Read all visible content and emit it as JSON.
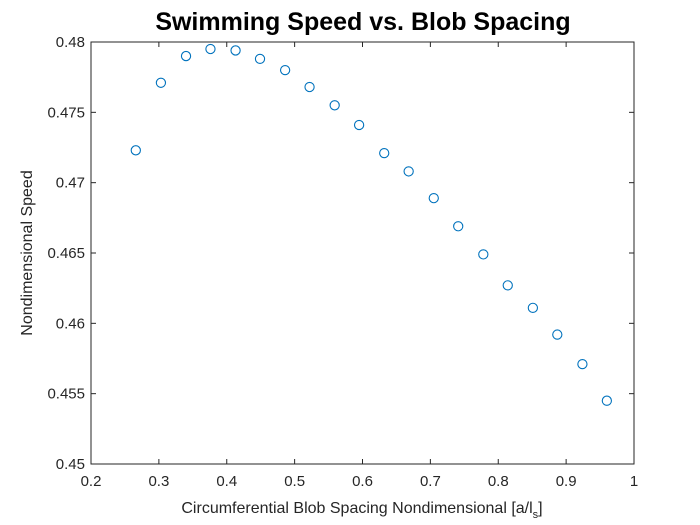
{
  "chart_data": {
    "type": "scatter",
    "title": "Swimming Speed vs. Blob Spacing",
    "xlabel_main": "Circumferential Blob Spacing Nondimensional [a/l",
    "xlabel_sub": "s",
    "xlabel_close": "]",
    "ylabel": "Nondimensional Speed",
    "xlim": [
      0.2,
      1
    ],
    "ylim": [
      0.45,
      0.48
    ],
    "xticks": [
      0.2,
      0.3,
      0.4,
      0.5,
      0.6,
      0.7,
      0.8,
      0.9,
      1
    ],
    "xtick_labels": [
      "0.2",
      "0.3",
      "0.4",
      "0.5",
      "0.6",
      "0.7",
      "0.8",
      "0.9",
      "1"
    ],
    "yticks": [
      0.45,
      0.455,
      0.46,
      0.465,
      0.47,
      0.475,
      0.48
    ],
    "ytick_labels": [
      "0.45",
      "0.455",
      "0.46",
      "0.465",
      "0.47",
      "0.475",
      "0.48"
    ],
    "grid": false,
    "marker": "circle",
    "color": "#0072BD",
    "axis_color": "#262626",
    "x": [
      0.266,
      0.303,
      0.34,
      0.376,
      0.413,
      0.449,
      0.486,
      0.522,
      0.559,
      0.595,
      0.632,
      0.668,
      0.705,
      0.741,
      0.778,
      0.814,
      0.851,
      0.887,
      0.924,
      0.96
    ],
    "y": [
      0.4723,
      0.4771,
      0.479,
      0.4795,
      0.4794,
      0.4788,
      0.478,
      0.4768,
      0.4755,
      0.4741,
      0.4721,
      0.4708,
      0.4689,
      0.4669,
      0.4649,
      0.4627,
      0.4611,
      0.4592,
      0.4571,
      0.4545
    ]
  }
}
